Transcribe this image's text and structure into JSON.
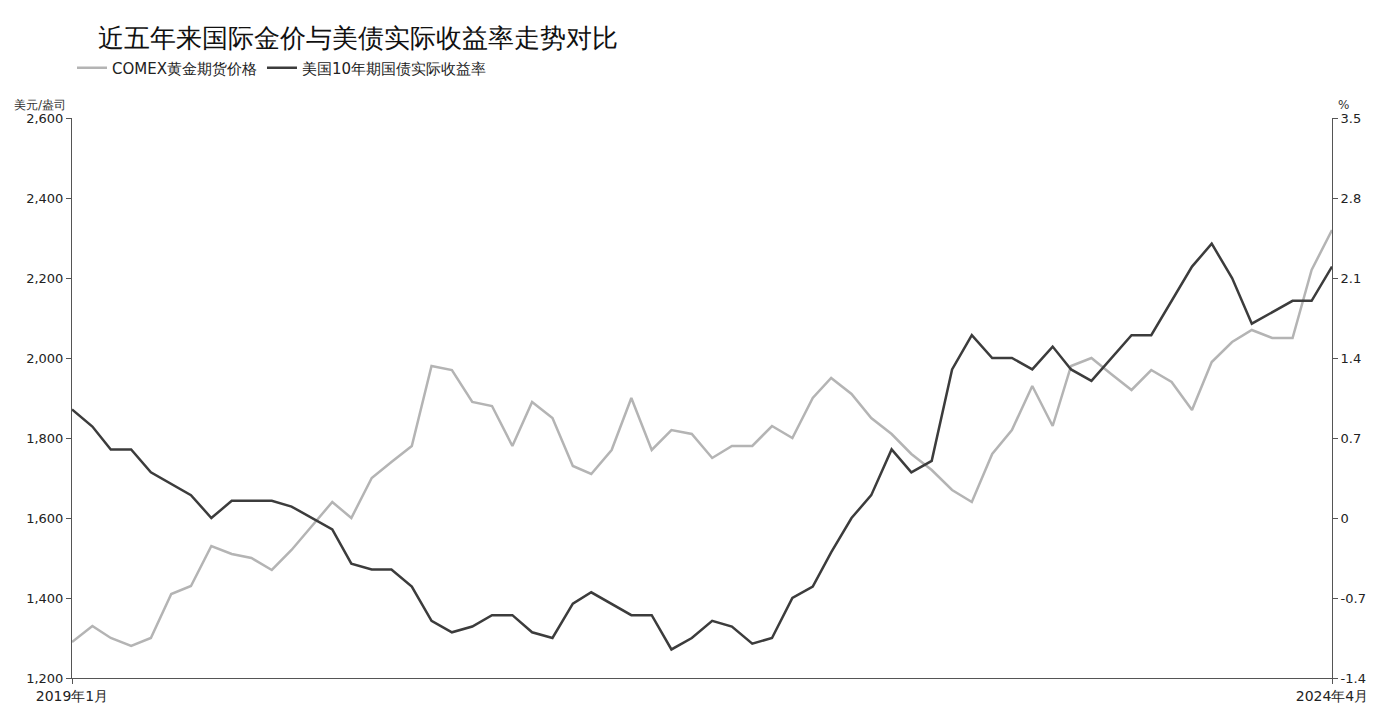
{
  "chart_data": {
    "type": "line",
    "title": "近五年来国际金价与美债实际收益率走势对比",
    "ylabel": "美元/盎司",
    "y2label": "%",
    "x": [
      "2019-01",
      "2019-02",
      "2019-03",
      "2019-04",
      "2019-05",
      "2019-06",
      "2019-07",
      "2019-08",
      "2019-09",
      "2019-10",
      "2019-11",
      "2019-12",
      "2020-01",
      "2020-02",
      "2020-03",
      "2020-04",
      "2020-05",
      "2020-06",
      "2020-07",
      "2020-08",
      "2020-09",
      "2020-10",
      "2020-11",
      "2020-12",
      "2021-01",
      "2021-02",
      "2021-03",
      "2021-04",
      "2021-05",
      "2021-06",
      "2021-07",
      "2021-08",
      "2021-09",
      "2021-10",
      "2021-11",
      "2021-12",
      "2022-01",
      "2022-02",
      "2022-03",
      "2022-04",
      "2022-05",
      "2022-06",
      "2022-07",
      "2022-08",
      "2022-09",
      "2022-10",
      "2022-11",
      "2022-12",
      "2023-01",
      "2023-02",
      "2023-03",
      "2023-04",
      "2023-05",
      "2023-06",
      "2023-07",
      "2023-08",
      "2023-09",
      "2023-10",
      "2023-11",
      "2023-12",
      "2024-01",
      "2024-02",
      "2024-03",
      "2024-04"
    ],
    "series": [
      {
        "name": "COMEX黄金期货价格",
        "color": "#b4b4b4",
        "axis": "y",
        "values": [
          1290,
          1330,
          1300,
          1280,
          1300,
          1410,
          1430,
          1530,
          1510,
          1500,
          1470,
          1520,
          1580,
          1640,
          1600,
          1700,
          1740,
          1780,
          1980,
          1970,
          1890,
          1880,
          1780,
          1890,
          1850,
          1730,
          1710,
          1770,
          1900,
          1770,
          1820,
          1810,
          1750,
          1780,
          1780,
          1830,
          1800,
          1900,
          1950,
          1910,
          1850,
          1810,
          1760,
          1720,
          1670,
          1640,
          1760,
          1820,
          1930,
          1830,
          1980,
          2000,
          1960,
          1920,
          1970,
          1940,
          1870,
          1990,
          2040,
          2070,
          2050,
          2050,
          2220,
          2320
        ]
      },
      {
        "name": "美国10年期国债实际收益率",
        "color": "#3c3c3c",
        "axis": "y2",
        "values": [
          0.95,
          0.8,
          0.6,
          0.6,
          0.4,
          0.3,
          0.2,
          0.0,
          0.15,
          0.15,
          0.15,
          0.1,
          0.0,
          -0.1,
          -0.4,
          -0.45,
          -0.45,
          -0.6,
          -0.9,
          -1.0,
          -0.95,
          -0.85,
          -0.85,
          -1.0,
          -1.05,
          -0.75,
          -0.65,
          -0.75,
          -0.85,
          -0.85,
          -1.15,
          -1.05,
          -0.9,
          -0.95,
          -1.1,
          -1.05,
          -0.7,
          -0.6,
          -0.3,
          0.0,
          0.2,
          0.6,
          0.4,
          0.5,
          1.3,
          1.6,
          1.4,
          1.4,
          1.3,
          1.5,
          1.3,
          1.2,
          1.4,
          1.6,
          1.6,
          1.9,
          2.2,
          2.4,
          2.1,
          1.7,
          1.8,
          1.9,
          1.9,
          2.2
        ]
      }
    ],
    "xlim": [
      "2019-01",
      "2024-04"
    ],
    "xticks": [
      {
        "value": "2019-01",
        "label": "2019年1月"
      },
      {
        "value": "2024-04",
        "label": "2024年4月"
      }
    ],
    "ylim": [
      1200,
      2600
    ],
    "yticks": [
      {
        "value": 1200,
        "label": "1,200"
      },
      {
        "value": 1400,
        "label": "1,400"
      },
      {
        "value": 1600,
        "label": "1,600"
      },
      {
        "value": 1800,
        "label": "1,800"
      },
      {
        "value": 2000,
        "label": "2,000"
      },
      {
        "value": 2200,
        "label": "2,200"
      },
      {
        "value": 2400,
        "label": "2,400"
      },
      {
        "value": 2600,
        "label": "2,600"
      }
    ],
    "y2lim": [
      -1.4,
      3.5
    ],
    "y2ticks": [
      -1.4,
      -0.7,
      0,
      0.7,
      1.4,
      2.1,
      2.8,
      3.5
    ],
    "grid": false,
    "legend": "top-left"
  }
}
